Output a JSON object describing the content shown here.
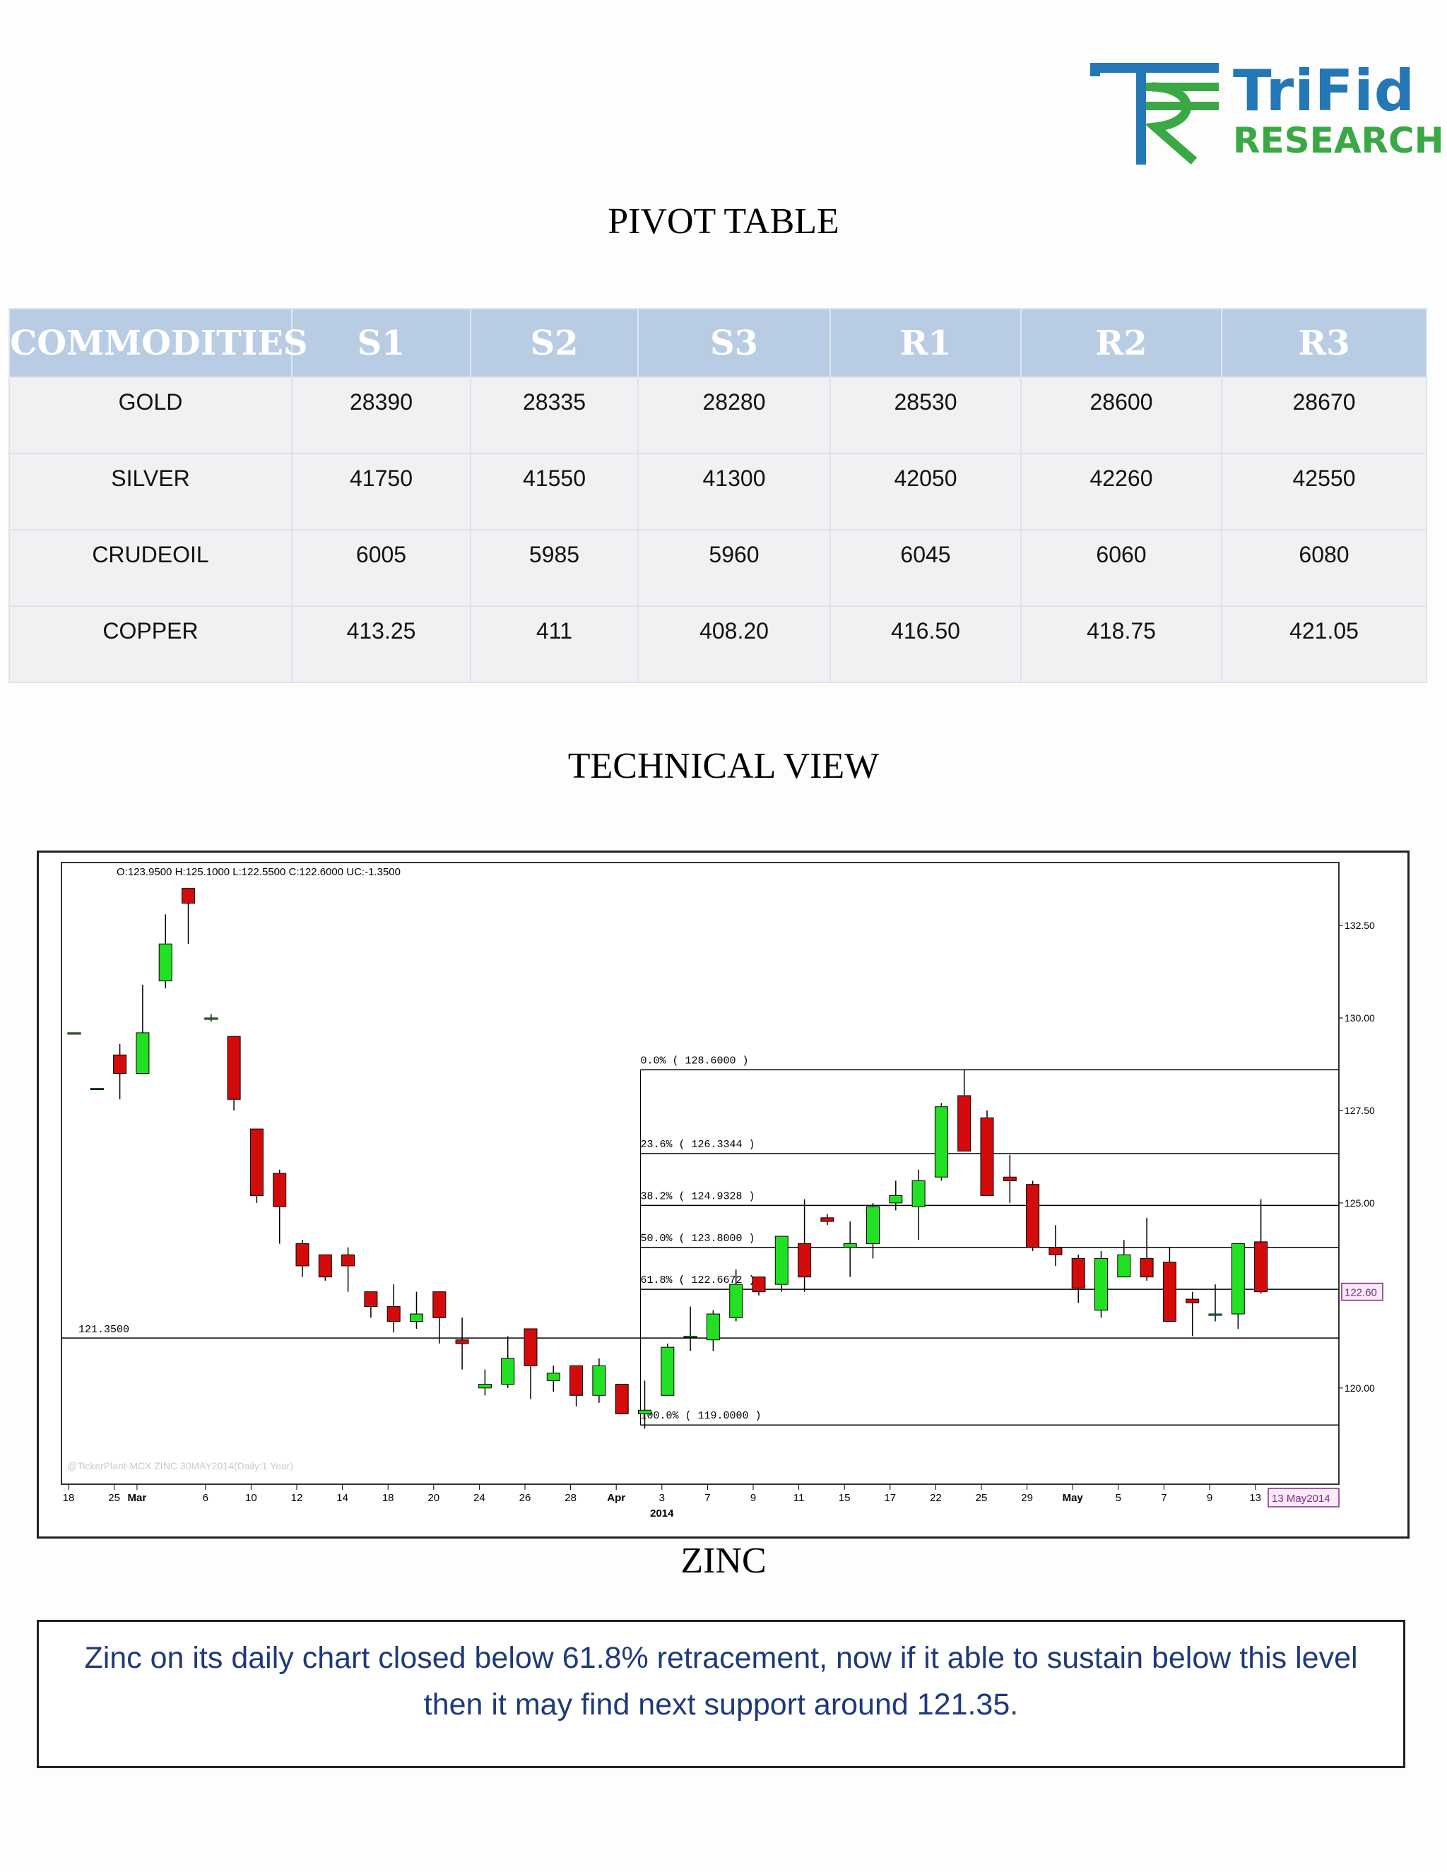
{
  "brand": {
    "name_top": "TriFid",
    "name_bottom": "RESEARCH"
  },
  "pivot": {
    "title": "PIVOT TABLE",
    "headers": [
      "COMMODITIES",
      "S1",
      "S2",
      "S3",
      "R1",
      "R2",
      "R3"
    ],
    "rows": [
      [
        "GOLD",
        "28390",
        "28335",
        "28280",
        "28530",
        "28600",
        "28670"
      ],
      [
        "SILVER",
        "41750",
        "41550",
        "41300",
        "42050",
        "42260",
        "42550"
      ],
      [
        "CRUDEOIL",
        "6005",
        "5985",
        "5960",
        "6045",
        "6060",
        "6080"
      ],
      [
        "COPPER",
        "413.25",
        "411",
        "408.20",
        "416.50",
        "418.75",
        "421.05"
      ]
    ]
  },
  "technical": {
    "title": "TECHNICAL VIEW",
    "chart_caption": "ZINC",
    "commentary": "Zinc on its daily chart closed below 61.8% retracement, now if it able to sustain below this level then it may find next support around 121.35."
  },
  "chart_data": {
    "type": "candlestick",
    "ohlc_label": "O:123.9500  H:125.1000  L:122.5500  C:122.6000  UC:-1.3500",
    "watermark": "@TickerPlant-MCX ZINC 30MAY2014(Daily:1 Year)",
    "ylim": [
      117.4,
      134.2
    ],
    "y_ticks": [
      "132.50",
      "130.00",
      "127.50",
      "125.00",
      "120.00"
    ],
    "y_tick_values": [
      132.5,
      130.0,
      127.5,
      125.0,
      120.0
    ],
    "last_price_label": "122.60",
    "last_price": 122.6,
    "date_label": "13 May2014",
    "x_ticks": [
      "18",
      "25",
      "Mar",
      "6",
      "10",
      "12",
      "14",
      "18",
      "20",
      "24",
      "26",
      "28",
      "Apr",
      "3",
      "7",
      "9",
      "11",
      "15",
      "17",
      "22",
      "25",
      "29",
      "May",
      "5",
      "7",
      "9",
      "13"
    ],
    "x_tick_index": [
      0,
      2,
      3,
      6,
      8,
      10,
      12,
      14,
      16,
      18,
      20,
      22,
      24,
      26,
      28,
      30,
      32,
      34,
      36,
      38,
      40,
      42,
      44,
      46,
      48,
      50,
      52
    ],
    "year_label": "2014",
    "year_index": 26,
    "support_label": "121.3500",
    "support": 121.35,
    "fib_levels": [
      {
        "label": "0.0% ( 128.6000 )",
        "value": 128.6
      },
      {
        "label": "23.6% ( 126.3344 )",
        "value": 126.3344
      },
      {
        "label": "38.2% ( 124.9328 )",
        "value": 124.9328
      },
      {
        "label": "50.0% ( 123.8000 )",
        "value": 123.8
      },
      {
        "label": "61.8% ( 122.6672 )",
        "value": 122.6672
      },
      {
        "label": "100.0% ( 119.0000 )",
        "value": 119.0
      }
    ],
    "fib_start_index": 25,
    "candles": [
      {
        "o": 129.6,
        "h": 129.6,
        "l": 129.6,
        "c": 129.6
      },
      {
        "o": 128.1,
        "h": 128.1,
        "l": 128.1,
        "c": 128.1
      },
      {
        "o": 129.0,
        "h": 129.3,
        "l": 127.8,
        "c": 128.5
      },
      {
        "o": 128.5,
        "h": 130.9,
        "l": 128.5,
        "c": 129.6
      },
      {
        "o": 131.0,
        "h": 132.8,
        "l": 130.8,
        "c": 132.0
      },
      {
        "o": 133.5,
        "h": 133.5,
        "l": 132.0,
        "c": 133.1
      },
      {
        "o": 130.0,
        "h": 130.1,
        "l": 129.9,
        "c": 130.0
      },
      {
        "o": 129.5,
        "h": 129.5,
        "l": 127.5,
        "c": 127.8
      },
      {
        "o": 127.0,
        "h": 127.0,
        "l": 125.0,
        "c": 125.2
      },
      {
        "o": 125.8,
        "h": 125.9,
        "l": 123.9,
        "c": 124.9
      },
      {
        "o": 123.9,
        "h": 124.0,
        "l": 123.0,
        "c": 123.3
      },
      {
        "o": 123.6,
        "h": 123.6,
        "l": 122.9,
        "c": 123.0
      },
      {
        "o": 123.6,
        "h": 123.8,
        "l": 122.6,
        "c": 123.3
      },
      {
        "o": 122.6,
        "h": 122.6,
        "l": 121.9,
        "c": 122.2
      },
      {
        "o": 122.2,
        "h": 122.8,
        "l": 121.5,
        "c": 121.8
      },
      {
        "o": 121.8,
        "h": 122.6,
        "l": 121.6,
        "c": 122.0
      },
      {
        "o": 122.6,
        "h": 122.6,
        "l": 121.2,
        "c": 121.9
      },
      {
        "o": 121.3,
        "h": 121.9,
        "l": 120.5,
        "c": 121.2
      },
      {
        "o": 120.0,
        "h": 120.5,
        "l": 119.8,
        "c": 120.1
      },
      {
        "o": 120.1,
        "h": 121.4,
        "l": 120.0,
        "c": 120.8
      },
      {
        "o": 121.6,
        "h": 121.6,
        "l": 119.7,
        "c": 120.6
      },
      {
        "o": 120.2,
        "h": 120.6,
        "l": 119.9,
        "c": 120.4
      },
      {
        "o": 120.6,
        "h": 120.6,
        "l": 119.5,
        "c": 119.8
      },
      {
        "o": 119.8,
        "h": 120.8,
        "l": 119.6,
        "c": 120.6
      },
      {
        "o": 120.1,
        "h": 120.1,
        "l": 119.3,
        "c": 119.3
      },
      {
        "o": 119.3,
        "h": 120.2,
        "l": 118.9,
        "c": 119.4
      },
      {
        "o": 119.8,
        "h": 121.2,
        "l": 119.8,
        "c": 121.1
      },
      {
        "o": 121.4,
        "h": 122.2,
        "l": 121.0,
        "c": 121.4
      },
      {
        "o": 121.3,
        "h": 122.1,
        "l": 121.0,
        "c": 122.0
      },
      {
        "o": 121.9,
        "h": 123.2,
        "l": 121.8,
        "c": 122.8
      },
      {
        "o": 123.0,
        "h": 123.0,
        "l": 122.5,
        "c": 122.6
      },
      {
        "o": 122.8,
        "h": 124.1,
        "l": 122.6,
        "c": 124.1
      },
      {
        "o": 123.9,
        "h": 125.1,
        "l": 122.6,
        "c": 123.0
      },
      {
        "o": 124.6,
        "h": 124.7,
        "l": 124.4,
        "c": 124.5
      },
      {
        "o": 123.8,
        "h": 124.5,
        "l": 123.0,
        "c": 123.9
      },
      {
        "o": 123.9,
        "h": 125.0,
        "l": 123.5,
        "c": 124.9
      },
      {
        "o": 125.0,
        "h": 125.6,
        "l": 124.8,
        "c": 125.2
      },
      {
        "o": 124.9,
        "h": 125.9,
        "l": 124.0,
        "c": 125.6
      },
      {
        "o": 125.7,
        "h": 127.7,
        "l": 125.6,
        "c": 127.6
      },
      {
        "o": 127.9,
        "h": 128.6,
        "l": 126.4,
        "c": 126.4
      },
      {
        "o": 127.3,
        "h": 127.5,
        "l": 125.2,
        "c": 125.2
      },
      {
        "o": 125.7,
        "h": 126.3,
        "l": 125.0,
        "c": 125.6
      },
      {
        "o": 125.5,
        "h": 125.6,
        "l": 123.7,
        "c": 123.8
      },
      {
        "o": 123.8,
        "h": 124.4,
        "l": 123.3,
        "c": 123.6
      },
      {
        "o": 123.5,
        "h": 123.6,
        "l": 122.3,
        "c": 122.7
      },
      {
        "o": 122.1,
        "h": 123.7,
        "l": 121.9,
        "c": 123.5
      },
      {
        "o": 123.0,
        "h": 124.0,
        "l": 123.0,
        "c": 123.6
      },
      {
        "o": 123.5,
        "h": 124.6,
        "l": 122.9,
        "c": 123.0
      },
      {
        "o": 123.4,
        "h": 123.8,
        "l": 121.9,
        "c": 121.8
      },
      {
        "o": 122.4,
        "h": 122.6,
        "l": 121.4,
        "c": 122.3
      },
      {
        "o": 122.0,
        "h": 122.8,
        "l": 121.8,
        "c": 122.0
      },
      {
        "o": 122.0,
        "h": 123.9,
        "l": 121.6,
        "c": 123.9
      },
      {
        "o": 123.95,
        "h": 125.1,
        "l": 122.55,
        "c": 122.6
      }
    ],
    "colors": {
      "up": "#22e022",
      "down": "#d40b0b",
      "line": "#000000",
      "accent": "#7a2a8a"
    }
  }
}
